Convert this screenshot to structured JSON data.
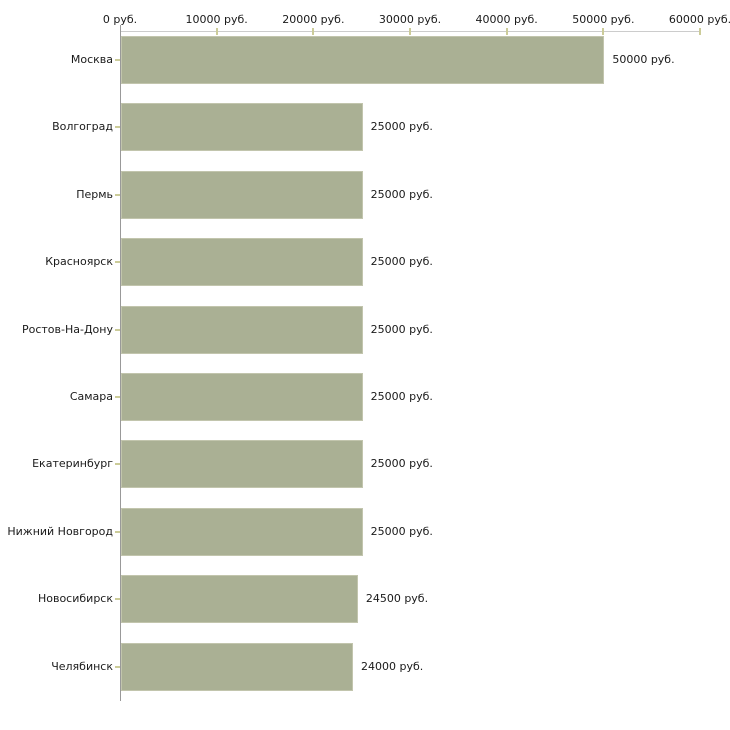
{
  "chart_data": {
    "type": "bar",
    "orientation": "horizontal",
    "title": "",
    "xlabel": "",
    "ylabel": "",
    "xlim": [
      0,
      60000
    ],
    "grid": false,
    "legend": "none",
    "categories": [
      "Москва",
      "Волгоград",
      "Пермь",
      "Красноярск",
      "Ростов-На-Дону",
      "Самара",
      "Екатеринбург",
      "Нижний Новгород",
      "Новосибирск",
      "Челябинск"
    ],
    "values": [
      50000,
      25000,
      25000,
      25000,
      25000,
      25000,
      25000,
      25000,
      24500,
      24000
    ],
    "value_labels": [
      "50000 руб.",
      "25000 руб.",
      "25000 руб.",
      "25000 руб.",
      "25000 руб.",
      "25000 руб.",
      "25000 руб.",
      "25000 руб.",
      "24500 руб.",
      "24000 руб."
    ],
    "x_ticks": [
      {
        "value": 0,
        "label": "0 руб."
      },
      {
        "value": 10000,
        "label": "10000 руб."
      },
      {
        "value": 20000,
        "label": "20000 руб."
      },
      {
        "value": 30000,
        "label": "30000 руб."
      },
      {
        "value": 40000,
        "label": "40000 руб."
      },
      {
        "value": 50000,
        "label": "50000 руб."
      },
      {
        "value": 60000,
        "label": "60000 руб."
      }
    ],
    "colors": {
      "bar_fill": "#aab094",
      "bar_border": "#c2c5ad",
      "axis_line": "#cccccc",
      "tick_mark": "#cccc99",
      "yaxis_line": "#999999",
      "text": "#1a1a1a",
      "background": "#ffffff"
    }
  }
}
